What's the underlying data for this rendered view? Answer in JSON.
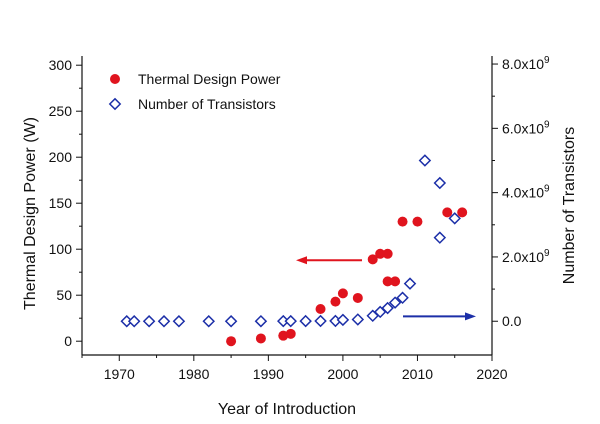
{
  "chart_data": {
    "type": "scatter",
    "xlabel": "Year of Introduction",
    "ylabel_left": "Thermal Design Power (W)",
    "ylabel_right": "Number of Transistors",
    "xlim": [
      1965,
      2020
    ],
    "xticks": [
      1970,
      1980,
      1990,
      2000,
      2010,
      2020
    ],
    "ylim_left": [
      -15,
      310
    ],
    "yticks_left": [
      0,
      50,
      100,
      150,
      200,
      250,
      300
    ],
    "ylim_right": [
      -1050000000,
      8250000000
    ],
    "yticks_right": [
      {
        "value": 0,
        "label": "0.0"
      },
      {
        "value": 2000000000,
        "base": "2.0x10",
        "exp": "9"
      },
      {
        "value": 4000000000,
        "base": "4.0x10",
        "exp": "9"
      },
      {
        "value": 6000000000,
        "base": "6.0x10",
        "exp": "9"
      },
      {
        "value": 8000000000,
        "base": "8.0x10",
        "exp": "9"
      }
    ],
    "grid": false,
    "legend_position": "top-left",
    "series": [
      {
        "name": "Thermal Design Power",
        "axis": "left",
        "marker": "filled-circle",
        "color": "#e0141e",
        "points": [
          [
            1985,
            0
          ],
          [
            1989,
            3
          ],
          [
            1992,
            6
          ],
          [
            1993,
            8
          ],
          [
            1997,
            35
          ],
          [
            1999,
            43
          ],
          [
            2000,
            52
          ],
          [
            2002,
            47
          ],
          [
            2004,
            89
          ],
          [
            2005,
            95
          ],
          [
            2006,
            95
          ],
          [
            2006,
            65
          ],
          [
            2007,
            65
          ],
          [
            2008,
            130
          ],
          [
            2010,
            130
          ],
          [
            2014,
            140
          ],
          [
            2016,
            140
          ]
        ]
      },
      {
        "name": "Number of Transistors",
        "axis": "right",
        "marker": "open-diamond",
        "color": "#1c2fa8",
        "points": [
          [
            1971,
            2300
          ],
          [
            1972,
            3500
          ],
          [
            1974,
            6000
          ],
          [
            1976,
            6500
          ],
          [
            1978,
            29000
          ],
          [
            1982,
            134000
          ],
          [
            1985,
            275000
          ],
          [
            1989,
            1200000
          ],
          [
            1992,
            3100000
          ],
          [
            1993,
            3100000
          ],
          [
            1995,
            5500000
          ],
          [
            1997,
            7500000
          ],
          [
            1999,
            9500000
          ],
          [
            2000,
            42000000
          ],
          [
            2002,
            55000000
          ],
          [
            2004,
            170000000
          ],
          [
            2005,
            290000000
          ],
          [
            2006,
            410000000
          ],
          [
            2007,
            580000000
          ],
          [
            2008,
            730000000
          ],
          [
            2009,
            1170000000
          ],
          [
            2011,
            5000000000
          ],
          [
            2013,
            4300000000
          ],
          [
            2013,
            2600000000
          ],
          [
            2015,
            3200000000
          ]
        ]
      }
    ],
    "annotations": [
      {
        "kind": "arrow",
        "color": "#e0141e",
        "direction": "left",
        "meaning": "points to left axis"
      },
      {
        "kind": "arrow",
        "color": "#1c2fa8",
        "direction": "right",
        "meaning": "points to right axis"
      }
    ]
  }
}
